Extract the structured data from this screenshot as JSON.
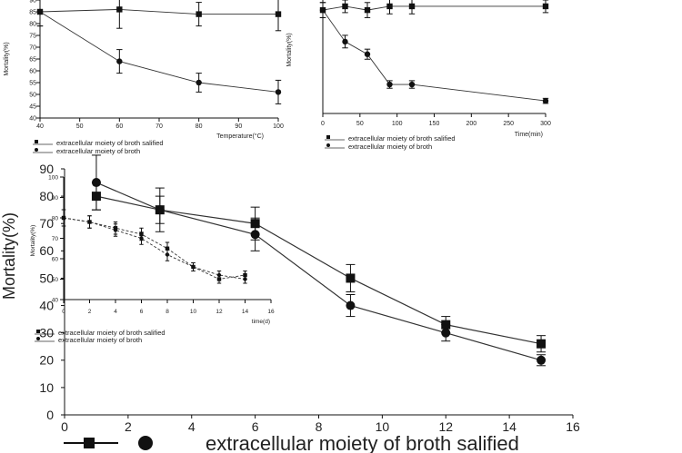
{
  "chart_data": [
    {
      "type": "line",
      "xlabel": "Temperature(°C)",
      "ylabel": "Mortality(%)",
      "xlim": [
        40,
        100
      ],
      "ylim": [
        40,
        90
      ],
      "x_ticks": [
        "40",
        "50",
        "60",
        "70",
        "80",
        "90",
        "100"
      ],
      "y_ticks": [
        "40",
        "45",
        "50",
        "55",
        "60",
        "65",
        "70",
        "75",
        "80",
        "85",
        "90"
      ],
      "series": [
        {
          "name": "extracellular moiety of broth salified",
          "marker": "square",
          "x": [
            40,
            60,
            80,
            100
          ],
          "y": [
            85,
            86,
            84,
            84
          ],
          "err": [
            6,
            8,
            5,
            7
          ]
        },
        {
          "name": "extracellular moiety of broth",
          "marker": "circle",
          "x": [
            40,
            60,
            80,
            100
          ],
          "y": [
            85,
            64,
            55,
            51
          ],
          "err": [
            6,
            5,
            4,
            5
          ]
        }
      ]
    },
    {
      "type": "line",
      "xlabel": "Time(min)",
      "ylabel": "Mortality(%)",
      "xlim": [
        0,
        300
      ],
      "ylim": [
        0,
        90
      ],
      "x_ticks": [
        "0",
        "50",
        "100",
        "150",
        "200",
        "250",
        "300"
      ],
      "series": [
        {
          "name": "extracellular moiety of broth salified",
          "marker": "square",
          "x": [
            0,
            30,
            60,
            90,
            120,
            300
          ],
          "y": [
            82,
            85,
            82,
            85,
            85,
            85
          ],
          "err": [
            6,
            5,
            6,
            6,
            6,
            5
          ]
        },
        {
          "name": "extracellular moiety of broth",
          "marker": "circle",
          "x": [
            0,
            30,
            60,
            90,
            120,
            300
          ],
          "y": [
            82,
            57,
            47,
            23,
            23,
            10
          ],
          "err": [
            6,
            5,
            4,
            3,
            3,
            2
          ]
        }
      ]
    },
    {
      "type": "line",
      "xlabel": "time(d)",
      "ylabel": "Mortality(%)",
      "xlim": [
        0,
        16
      ],
      "ylim": [
        40,
        100
      ],
      "x_ticks": [
        "0",
        "2",
        "4",
        "6",
        "8",
        "10",
        "12",
        "14",
        "16"
      ],
      "y_ticks": [
        "40",
        "50",
        "60",
        "70",
        "80",
        "90",
        "100"
      ],
      "series": [
        {
          "name": "extracellular moiety of broth salified",
          "marker": "square",
          "x": [
            0,
            2,
            4,
            6,
            8,
            10,
            12,
            14
          ],
          "y": [
            80,
            78,
            75,
            72,
            65,
            56,
            50,
            52
          ],
          "err": [
            4,
            3,
            3,
            3,
            3,
            2,
            2,
            2
          ]
        },
        {
          "name": "extracellular moiety of broth",
          "marker": "circle",
          "x": [
            0,
            2,
            4,
            6,
            8,
            10,
            12,
            14
          ],
          "y": [
            80,
            78,
            74,
            70,
            62,
            56,
            52,
            50
          ],
          "err": [
            4,
            3,
            3,
            3,
            3,
            2,
            2,
            2
          ]
        }
      ]
    },
    {
      "type": "line",
      "xlabel": "",
      "ylabel": "Mortality(%)",
      "xlim": [
        0,
        16
      ],
      "ylim": [
        0,
        90
      ],
      "x_ticks": [
        "0",
        "2",
        "4",
        "6",
        "8",
        "10",
        "12",
        "14",
        "16"
      ],
      "y_ticks": [
        "0",
        "10",
        "20",
        "30",
        "40",
        "50",
        "60",
        "70",
        "80",
        "90"
      ],
      "series": [
        {
          "name": "extracellular moiety of broth salified",
          "marker": "square",
          "x": [
            1,
            3,
            6,
            9,
            12,
            15
          ],
          "y": [
            80,
            75,
            70,
            50,
            33,
            26
          ],
          "err": [
            5,
            8,
            6,
            5,
            3,
            3
          ]
        },
        {
          "name": "extracellular moiety of broth",
          "marker": "circle",
          "x": [
            1,
            3,
            6,
            9,
            12,
            15
          ],
          "y": [
            85,
            75,
            66,
            40,
            30,
            20
          ],
          "err": [
            10,
            5,
            6,
            4,
            3,
            2
          ]
        }
      ]
    }
  ]
}
